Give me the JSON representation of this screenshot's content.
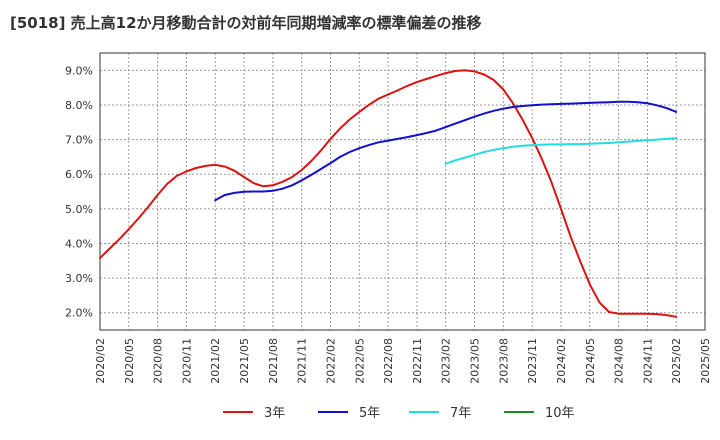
{
  "chart_data": {
    "type": "line",
    "title": "[5018]  売上高12か月移動合計の対前年同期増減率の標準偏差の推移",
    "y_ticks": [
      "2.0%",
      "3.0%",
      "4.0%",
      "5.0%",
      "6.0%",
      "7.0%",
      "8.0%",
      "9.0%"
    ],
    "ylim": [
      1.5,
      9.5
    ],
    "x_ticks": [
      "2020/02",
      "2020/05",
      "2020/08",
      "2020/11",
      "2021/02",
      "2021/05",
      "2021/08",
      "2021/11",
      "2022/02",
      "2022/05",
      "2022/08",
      "2022/11",
      "2023/02",
      "2023/05",
      "2023/08",
      "2023/11",
      "2024/02",
      "2024/05",
      "2024/08",
      "2024/11",
      "2025/02",
      "2025/05"
    ],
    "grid": true,
    "legend_position": "bottom",
    "series": [
      {
        "name": "3年",
        "color": "#dd1111",
        "x": [
          "2020/02",
          "2020/03",
          "2020/04",
          "2020/05",
          "2020/06",
          "2020/07",
          "2020/08",
          "2020/09",
          "2020/10",
          "2020/11",
          "2020/12",
          "2021/01",
          "2021/02",
          "2021/03",
          "2021/04",
          "2021/05",
          "2021/06",
          "2021/07",
          "2021/08",
          "2021/09",
          "2021/10",
          "2021/11",
          "2021/12",
          "2022/01",
          "2022/02",
          "2022/03",
          "2022/04",
          "2022/05",
          "2022/06",
          "2022/07",
          "2022/08",
          "2022/09",
          "2022/10",
          "2022/11",
          "2022/12",
          "2023/01",
          "2023/02",
          "2023/03",
          "2023/04",
          "2023/05",
          "2023/06",
          "2023/07",
          "2023/08",
          "2023/09",
          "2023/10",
          "2023/11",
          "2023/12",
          "2024/01",
          "2024/02",
          "2024/03",
          "2024/04",
          "2024/05",
          "2024/06",
          "2024/07",
          "2024/08",
          "2024/09",
          "2024/10",
          "2024/11",
          "2024/12",
          "2025/01",
          "2025/02"
        ],
        "values": [
          3.58,
          3.85,
          4.12,
          4.41,
          4.72,
          5.05,
          5.4,
          5.72,
          5.95,
          6.08,
          6.18,
          6.24,
          6.27,
          6.22,
          6.1,
          5.92,
          5.74,
          5.65,
          5.68,
          5.78,
          5.92,
          6.12,
          6.38,
          6.68,
          7.02,
          7.32,
          7.58,
          7.8,
          8.0,
          8.18,
          8.3,
          8.42,
          8.55,
          8.66,
          8.75,
          8.84,
          8.92,
          8.98,
          9.0,
          8.97,
          8.88,
          8.72,
          8.45,
          8.05,
          7.58,
          7.05,
          6.45,
          5.78,
          5.0,
          4.2,
          3.48,
          2.82,
          2.3,
          2.02,
          1.97,
          1.97,
          1.97,
          1.97,
          1.96,
          1.93,
          1.88
        ]
      },
      {
        "name": "5年",
        "color": "#1111cc",
        "x": [
          "2021/02",
          "2021/03",
          "2021/04",
          "2021/05",
          "2021/06",
          "2021/07",
          "2021/08",
          "2021/09",
          "2021/10",
          "2021/11",
          "2021/12",
          "2022/01",
          "2022/02",
          "2022/03",
          "2022/04",
          "2022/05",
          "2022/06",
          "2022/07",
          "2022/08",
          "2022/09",
          "2022/10",
          "2022/11",
          "2022/12",
          "2023/01",
          "2023/02",
          "2023/03",
          "2023/04",
          "2023/05",
          "2023/06",
          "2023/07",
          "2023/08",
          "2023/09",
          "2023/10",
          "2023/11",
          "2023/12",
          "2024/01",
          "2024/02",
          "2024/03",
          "2024/04",
          "2024/05",
          "2024/06",
          "2024/07",
          "2024/08",
          "2024/09",
          "2024/10",
          "2024/11",
          "2024/12",
          "2025/01",
          "2025/02"
        ],
        "values": [
          5.25,
          5.4,
          5.46,
          5.49,
          5.5,
          5.5,
          5.52,
          5.58,
          5.68,
          5.82,
          5.98,
          6.15,
          6.32,
          6.5,
          6.64,
          6.75,
          6.84,
          6.92,
          6.97,
          7.02,
          7.07,
          7.13,
          7.19,
          7.26,
          7.36,
          7.46,
          7.56,
          7.66,
          7.75,
          7.83,
          7.89,
          7.94,
          7.97,
          7.99,
          8.01,
          8.02,
          8.03,
          8.04,
          8.05,
          8.06,
          8.07,
          8.08,
          8.09,
          8.09,
          8.08,
          8.05,
          7.99,
          7.91,
          7.8
        ]
      },
      {
        "name": "7年",
        "color": "#22dddd",
        "x": [
          "2023/02",
          "2023/03",
          "2023/04",
          "2023/05",
          "2023/06",
          "2023/07",
          "2023/08",
          "2023/09",
          "2023/10",
          "2023/11",
          "2023/12",
          "2024/01",
          "2024/02",
          "2024/03",
          "2024/04",
          "2024/05",
          "2024/06",
          "2024/07",
          "2024/08",
          "2024/09",
          "2024/10",
          "2024/11",
          "2024/12",
          "2025/01",
          "2025/02"
        ],
        "values": [
          6.3,
          6.4,
          6.48,
          6.56,
          6.64,
          6.7,
          6.75,
          6.79,
          6.82,
          6.84,
          6.85,
          6.86,
          6.86,
          6.87,
          6.87,
          6.88,
          6.89,
          6.9,
          6.92,
          6.94,
          6.96,
          6.98,
          7.0,
          7.02,
          7.04
        ]
      },
      {
        "name": "10年",
        "color": "#228822",
        "x": [],
        "values": []
      }
    ]
  }
}
